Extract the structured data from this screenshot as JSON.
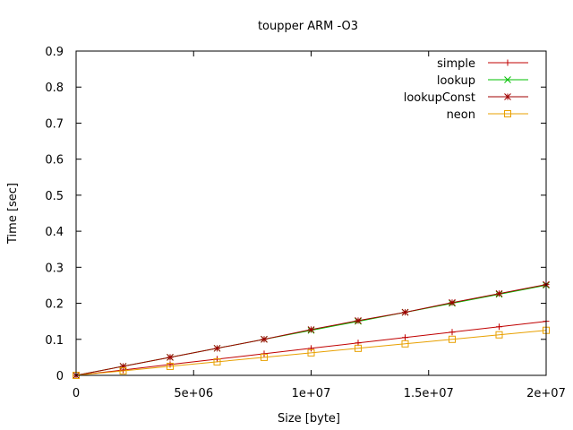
{
  "chart_data": {
    "type": "line",
    "title": "toupper ARM -O3",
    "xlabel": "Size [byte]",
    "ylabel": "Time [sec]",
    "xlim": [
      0,
      20000000
    ],
    "ylim": [
      0,
      0.9
    ],
    "x_ticks": [
      {
        "value": 0,
        "label": "0"
      },
      {
        "value": 5000000,
        "label": "5e+06"
      },
      {
        "value": 10000000,
        "label": "1e+07"
      },
      {
        "value": 15000000,
        "label": "1.5e+07"
      },
      {
        "value": 20000000,
        "label": "2e+07"
      }
    ],
    "y_ticks": [
      {
        "value": 0,
        "label": "0"
      },
      {
        "value": 0.1,
        "label": "0.1"
      },
      {
        "value": 0.2,
        "label": "0.2"
      },
      {
        "value": 0.3,
        "label": "0.3"
      },
      {
        "value": 0.4,
        "label": "0.4"
      },
      {
        "value": 0.5,
        "label": "0.5"
      },
      {
        "value": 0.6,
        "label": "0.6"
      },
      {
        "value": 0.7,
        "label": "0.7"
      },
      {
        "value": 0.8,
        "label": "0.8"
      },
      {
        "value": 0.9,
        "label": "0.9"
      }
    ],
    "grid": false,
    "legend_position": "top-right",
    "x": [
      0,
      2000000,
      4000000,
      6000000,
      8000000,
      10000000,
      12000000,
      14000000,
      16000000,
      18000000,
      20000000
    ],
    "series": [
      {
        "name": "simple",
        "color": "#c00000",
        "marker": "plus",
        "values": [
          0,
          0.015,
          0.03,
          0.045,
          0.06,
          0.075,
          0.09,
          0.105,
          0.12,
          0.135,
          0.15
        ]
      },
      {
        "name": "lookup",
        "color": "#00c000",
        "marker": "cross",
        "values": [
          0,
          0.025,
          0.05,
          0.075,
          0.1,
          0.125,
          0.15,
          0.175,
          0.2,
          0.225,
          0.25
        ]
      },
      {
        "name": "lookupConst",
        "color": "#a00000",
        "marker": "star",
        "values": [
          0,
          0.025,
          0.05,
          0.075,
          0.1,
          0.127,
          0.152,
          0.175,
          0.202,
          0.227,
          0.252
        ]
      },
      {
        "name": "neon",
        "color": "#e8a000",
        "marker": "square",
        "values": [
          0,
          0.0125,
          0.025,
          0.0375,
          0.05,
          0.0625,
          0.075,
          0.0875,
          0.1,
          0.1125,
          0.125
        ]
      }
    ]
  }
}
